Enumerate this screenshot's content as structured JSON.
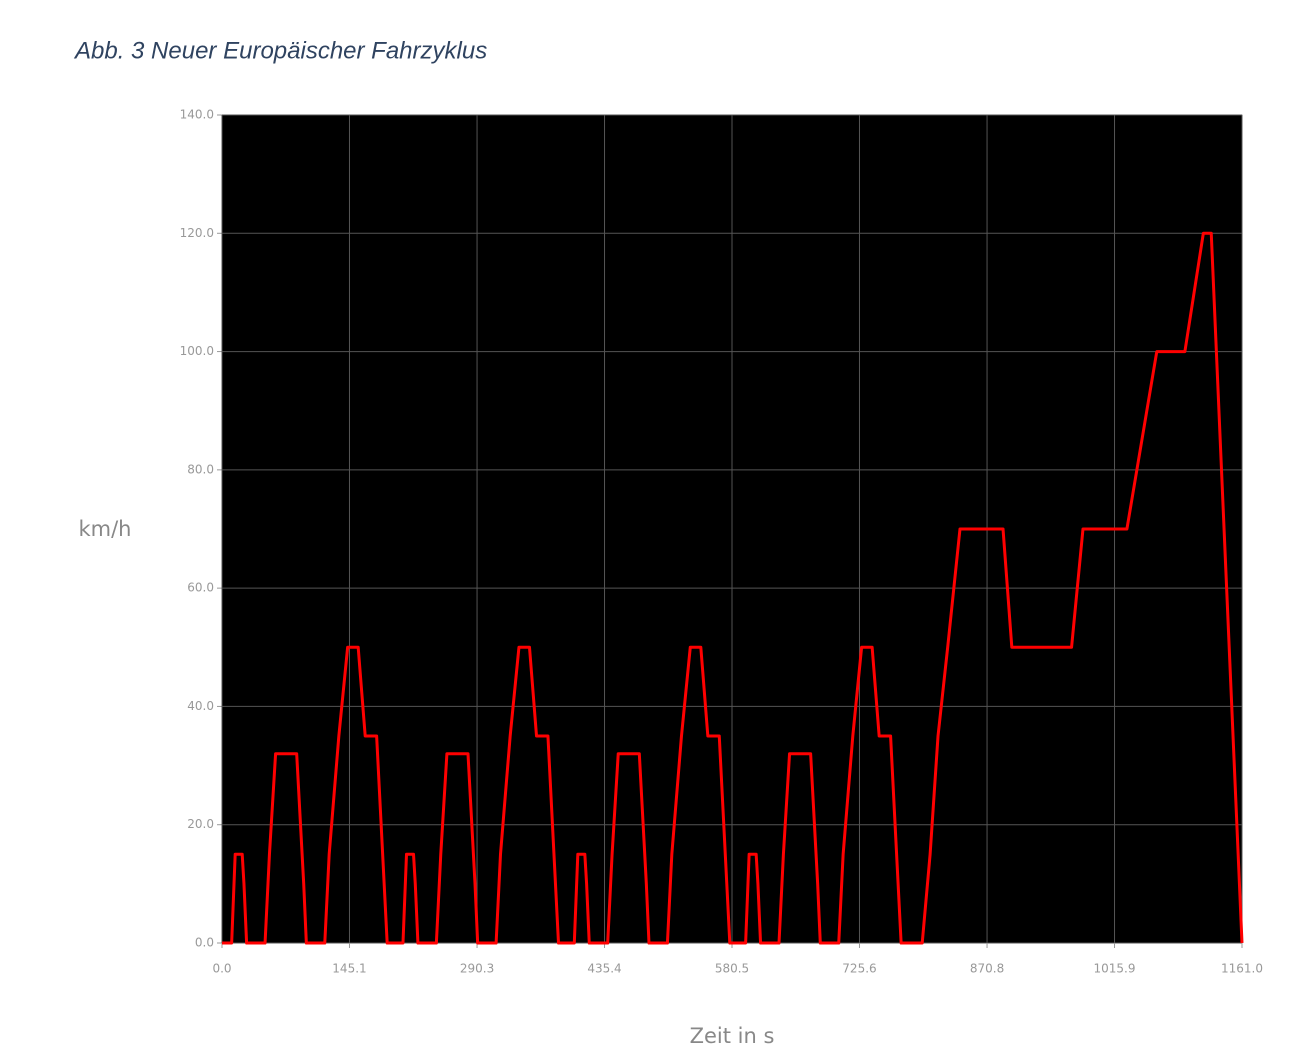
{
  "chart_data": {
    "type": "line",
    "title": "Abb. 3 Neuer Europäischer Fahrzyklus",
    "x_label": "Zeit in s",
    "y_label": "km/h",
    "x": [
      0,
      11,
      15,
      23,
      25,
      28,
      49,
      54,
      61,
      85,
      93,
      96,
      117,
      122,
      133,
      143,
      155,
      163,
      176,
      188,
      195,
      206,
      210,
      218,
      220,
      223,
      244,
      249,
      256,
      280,
      288,
      291,
      312,
      317,
      328,
      338,
      350,
      358,
      371,
      383,
      390,
      401,
      405,
      413,
      415,
      418,
      439,
      444,
      451,
      475,
      483,
      486,
      507,
      512,
      523,
      533,
      545,
      553,
      566,
      578,
      585,
      596,
      600,
      608,
      610,
      613,
      634,
      639,
      646,
      670,
      678,
      681,
      702,
      707,
      718,
      728,
      740,
      748,
      761,
      773,
      797,
      806,
      815,
      826,
      840,
      889,
      899,
      967,
      980,
      1030,
      1064,
      1096,
      1117,
      1126,
      1161
    ],
    "values": [
      0,
      0,
      15,
      15,
      10,
      0,
      0,
      15,
      32,
      32,
      10,
      0,
      0,
      15,
      35,
      50,
      50,
      35,
      35,
      0,
      0,
      0,
      15,
      15,
      10,
      0,
      0,
      15,
      32,
      32,
      10,
      0,
      0,
      15,
      35,
      50,
      50,
      35,
      35,
      0,
      0,
      0,
      15,
      15,
      10,
      0,
      0,
      15,
      32,
      32,
      10,
      0,
      0,
      15,
      35,
      50,
      50,
      35,
      35,
      0,
      0,
      0,
      15,
      15,
      10,
      0,
      0,
      15,
      32,
      32,
      10,
      0,
      0,
      15,
      35,
      50,
      50,
      35,
      35,
      0,
      0,
      15,
      35,
      50,
      70,
      70,
      50,
      50,
      70,
      70,
      100,
      100,
      120,
      120,
      0
    ],
    "color": "#ff0000",
    "xlim": [
      0,
      1161
    ],
    "ylim": [
      0,
      140
    ],
    "xticks": [
      {
        "value": 0,
        "label": "0.0"
      },
      145.1,
      290.3,
      435.4,
      580.5,
      725.6,
      870.8,
      1015.9,
      {
        "value": 1161,
        "label": "1161.0"
      }
    ],
    "yticks": [
      {
        "value": 0,
        "label": "0.0"
      },
      {
        "value": 20,
        "label": "20.0"
      },
      {
        "value": 40,
        "label": "40.0"
      },
      {
        "value": 60,
        "label": "60.0"
      },
      {
        "value": 80,
        "label": "80.0"
      },
      {
        "value": 100,
        "label": "100.0"
      },
      {
        "value": 120,
        "label": "120.0"
      },
      {
        "value": 140,
        "label": "140.0"
      }
    ],
    "grid": true
  }
}
